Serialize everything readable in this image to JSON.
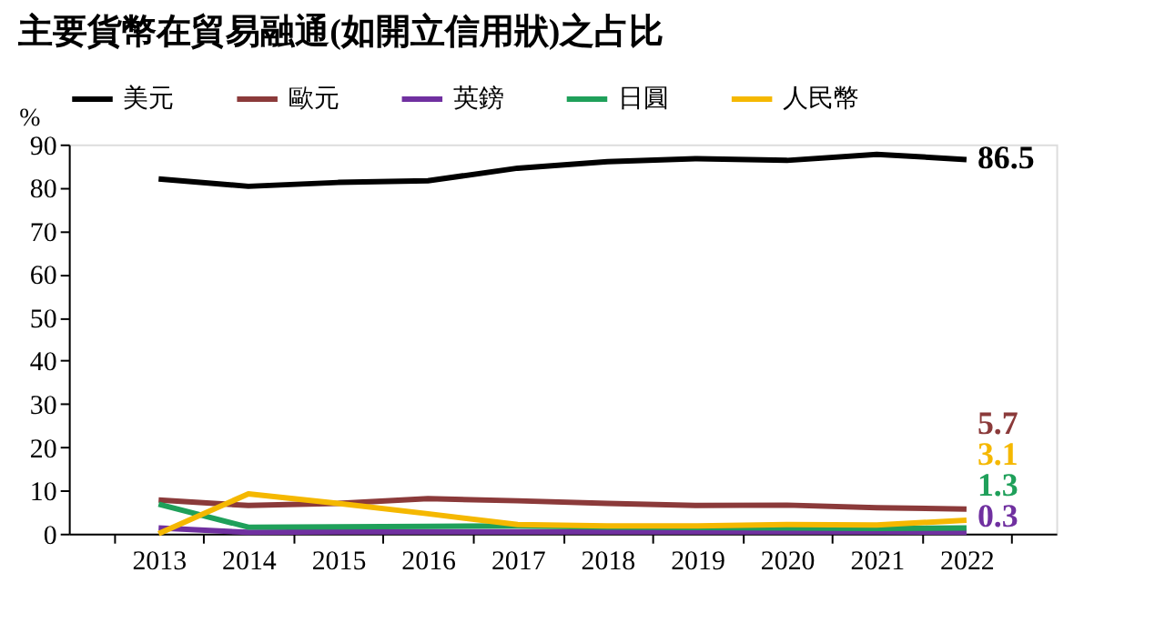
{
  "chart_data": {
    "type": "line",
    "title": "主要貨幣在貿易融通(如開立信用狀)之占比",
    "ylabel": "%",
    "categories": [
      "2013",
      "2014",
      "2015",
      "2016",
      "2017",
      "2018",
      "2019",
      "2020",
      "2021",
      "2022"
    ],
    "series": [
      {
        "name": "美元",
        "color": "#000000",
        "values": [
          82,
          80.3,
          81.2,
          81.6,
          84.5,
          86,
          86.7,
          86.3,
          87.7,
          86.5
        ],
        "value_labels": [
          null,
          null,
          null,
          null,
          null,
          null,
          null,
          null,
          null,
          "86.5"
        ]
      },
      {
        "name": "歐元",
        "color": "#8b3a3a",
        "values": [
          7.8,
          6.5,
          7,
          8.1,
          7.6,
          7,
          6.5,
          6.6,
          6,
          5.7
        ],
        "value_labels": [
          null,
          null,
          null,
          null,
          null,
          null,
          null,
          null,
          null,
          "5.7"
        ]
      },
      {
        "name": "英鎊",
        "color": "#7030a0",
        "values": [
          1.3,
          0.3,
          0.4,
          0.4,
          0.4,
          0.4,
          0.4,
          0.4,
          0.4,
          0.3
        ],
        "value_labels": [
          null,
          null,
          null,
          null,
          null,
          null,
          null,
          null,
          null,
          "0.3"
        ]
      },
      {
        "name": "日圓",
        "color": "#1fa05a",
        "values": [
          6.8,
          1.5,
          1.6,
          1.7,
          1.8,
          1.5,
          1.4,
          1.3,
          1.2,
          1.3
        ],
        "value_labels": [
          null,
          null,
          null,
          null,
          null,
          null,
          null,
          null,
          null,
          "1.3"
        ]
      },
      {
        "name": "人民幣",
        "color": "#f5b800",
        "values": [
          0,
          9.2,
          7,
          4.6,
          2.1,
          1.8,
          1.8,
          2.1,
          2,
          3.1
        ],
        "value_labels": [
          null,
          null,
          null,
          null,
          null,
          null,
          null,
          null,
          null,
          "3.1"
        ]
      }
    ],
    "ylim": [
      0,
      90
    ],
    "yticks": [
      0,
      10,
      20,
      30,
      40,
      50,
      60,
      70,
      80,
      90
    ],
    "grid": false,
    "legend": "top",
    "marker": "none",
    "line_style": "solid"
  }
}
